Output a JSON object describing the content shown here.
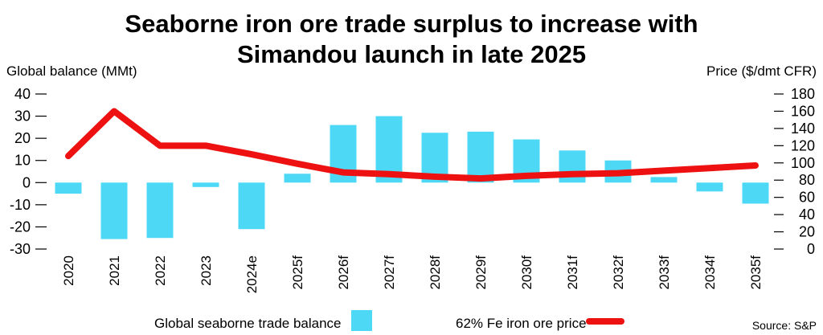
{
  "chart_data": {
    "type": "bar+line",
    "title": "Seaborne iron ore trade surplus to increase with",
    "title_line2": "Simandou launch in late 2025",
    "ylabel_left": "Global balance (MMt)",
    "ylabel_right": "Price ($/dmt CFR)",
    "categories": [
      "2020",
      "2021",
      "2022",
      "2023",
      "2024e",
      "2025f",
      "2026f",
      "2027f",
      "2028f",
      "2029f",
      "2030f",
      "2031f",
      "2032f",
      "2033f",
      "2034f",
      "2035f"
    ],
    "series": [
      {
        "name": "Global seaborne trade balance",
        "type": "bar",
        "axis": "left",
        "color": "#4dd9f5",
        "values": [
          -5,
          -25.5,
          -25,
          -2,
          -21,
          4,
          26,
          30,
          22.5,
          23,
          19.5,
          14.5,
          10,
          2.5,
          -4,
          -9.5
        ]
      },
      {
        "name": "62% Fe iron ore price",
        "type": "line",
        "axis": "right",
        "color": "#ee1111",
        "values": [
          108,
          160,
          120,
          120,
          110,
          99,
          89,
          87,
          84,
          82,
          85,
          87,
          88,
          91,
          94,
          97
        ]
      }
    ],
    "left_axis": {
      "range": [
        -30,
        40
      ],
      "ticks": [
        "40",
        "30",
        "20",
        "10",
        "0",
        "-10",
        "-20",
        "-30"
      ]
    },
    "right_axis": {
      "range": [
        0,
        180
      ],
      "ticks": [
        "180",
        "160",
        "140",
        "120",
        "100",
        "80",
        "60",
        "40",
        "20",
        "0"
      ]
    },
    "legend_placement": "bottom",
    "grid": false,
    "source": "Source: S&P"
  }
}
